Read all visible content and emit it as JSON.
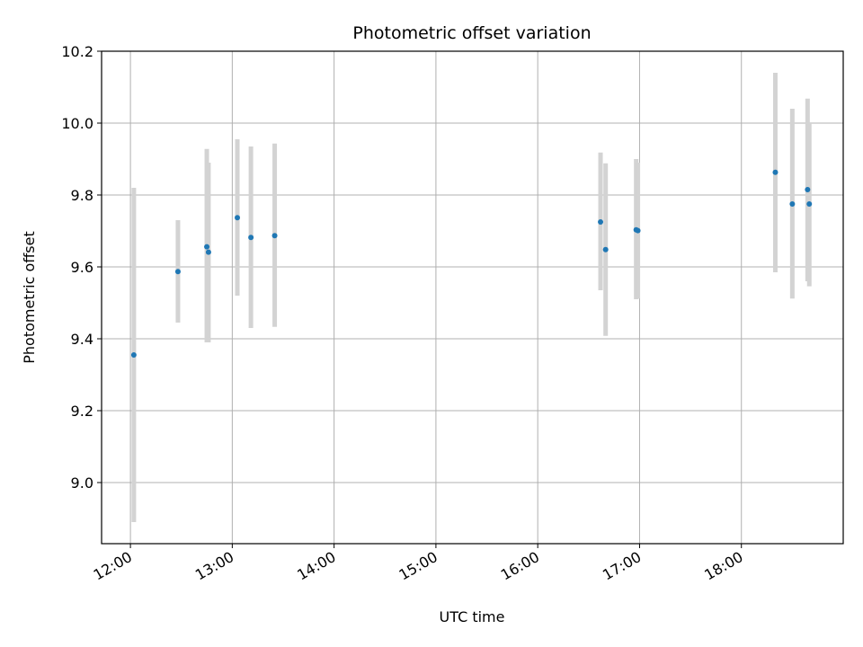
{
  "chart_data": {
    "type": "scatter",
    "title": "Photometric offset variation",
    "xlabel": "UTC time",
    "ylabel": "Photometric offset",
    "grid": true,
    "xlim": [
      "11:43",
      "19:00"
    ],
    "ylim": [
      8.83,
      10.2
    ],
    "x_ticks": [
      "12:00",
      "13:00",
      "14:00",
      "15:00",
      "16:00",
      "17:00",
      "18:00"
    ],
    "y_ticks": [
      "9.0",
      "9.2",
      "9.4",
      "9.6",
      "9.8",
      "10.0",
      "10.2"
    ],
    "colors": {
      "marker": "#1f77b4",
      "errorbar": "#d3d3d3",
      "grid": "#b0b0b0"
    },
    "points": [
      {
        "time": "12:02",
        "y": 9.355,
        "err_low": 8.89,
        "err_high": 9.82
      },
      {
        "time": "12:28",
        "y": 9.587,
        "err_low": 9.445,
        "err_high": 9.73
      },
      {
        "time": "12:45",
        "y": 9.656,
        "err_low": 9.39,
        "err_high": 9.928
      },
      {
        "time": "12:46",
        "y": 9.641,
        "err_low": 9.39,
        "err_high": 9.89
      },
      {
        "time": "13:03",
        "y": 9.737,
        "err_low": 9.52,
        "err_high": 9.955
      },
      {
        "time": "13:11",
        "y": 9.682,
        "err_low": 9.43,
        "err_high": 9.935
      },
      {
        "time": "13:25",
        "y": 9.687,
        "err_low": 9.433,
        "err_high": 9.943
      },
      {
        "time": "16:37",
        "y": 9.725,
        "err_low": 9.535,
        "err_high": 9.918
      },
      {
        "time": "16:40",
        "y": 9.648,
        "err_low": 9.408,
        "err_high": 9.888
      },
      {
        "time": "16:58",
        "y": 9.703,
        "err_low": 9.51,
        "err_high": 9.9
      },
      {
        "time": "16:59",
        "y": 9.701,
        "err_low": 9.512,
        "err_high": 9.89
      },
      {
        "time": "18:20",
        "y": 9.863,
        "err_low": 9.585,
        "err_high": 10.14
      },
      {
        "time": "18:30",
        "y": 9.775,
        "err_low": 9.512,
        "err_high": 10.04
      },
      {
        "time": "18:39",
        "y": 9.815,
        "err_low": 9.56,
        "err_high": 10.068
      },
      {
        "time": "18:40",
        "y": 9.775,
        "err_low": 9.546,
        "err_high": 10.0
      }
    ]
  }
}
